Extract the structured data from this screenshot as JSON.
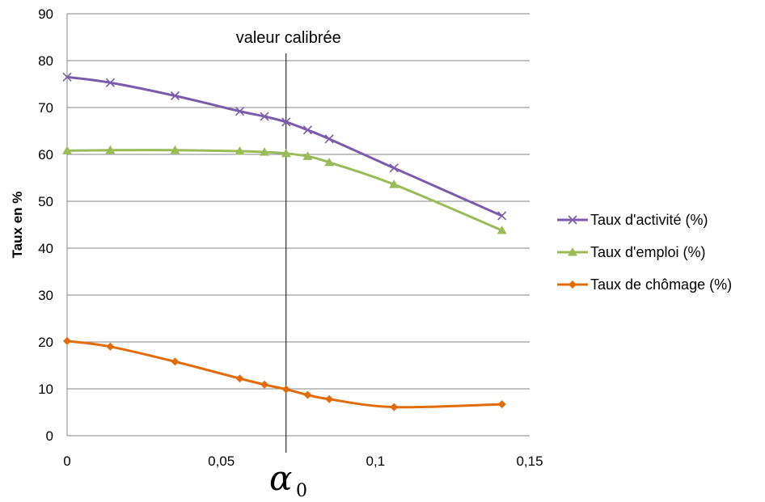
{
  "chart_data": {
    "type": "line",
    "title": "",
    "ylabel": "Taux en %",
    "xlabel": "α",
    "xlabel_subscript": "0",
    "xlim": [
      0,
      0.15
    ],
    "ylim": [
      0,
      90
    ],
    "x_ticks": [
      {
        "value": 0,
        "label": "0"
      },
      {
        "value": 0.05,
        "label": "0,05"
      },
      {
        "value": 0.1,
        "label": "0,1"
      },
      {
        "value": 0.15,
        "label": "0,15"
      }
    ],
    "y_ticks": [
      {
        "value": 0,
        "label": "0"
      },
      {
        "value": 10,
        "label": "10"
      },
      {
        "value": 20,
        "label": "20"
      },
      {
        "value": 30,
        "label": "30"
      },
      {
        "value": 40,
        "label": "40"
      },
      {
        "value": 50,
        "label": "50"
      },
      {
        "value": 60,
        "label": "60"
      },
      {
        "value": 70,
        "label": "70"
      },
      {
        "value": 80,
        "label": "80"
      },
      {
        "value": 90,
        "label": "90"
      }
    ],
    "grid": "horizontal",
    "legend_position": "right",
    "annotations": [
      {
        "type": "vertical-line",
        "x": 0.071,
        "label": "valeur calibrée"
      }
    ],
    "series": [
      {
        "name": "Taux d'activité (%)",
        "color": "#7b5bab",
        "marker": "x",
        "x": [
          0,
          0.014,
          0.035,
          0.056,
          0.064,
          0.071,
          0.078,
          0.085,
          0.106,
          0.141
        ],
        "y": [
          76.5,
          75.3,
          72.5,
          69.2,
          68.1,
          66.9,
          65.2,
          63.3,
          57.1,
          46.9
        ]
      },
      {
        "name": "Taux d'emploi (%)",
        "color": "#9bbb59",
        "marker": "triangle",
        "x": [
          0,
          0.014,
          0.035,
          0.056,
          0.064,
          0.071,
          0.078,
          0.085,
          0.106,
          0.141
        ],
        "y": [
          60.8,
          60.9,
          60.9,
          60.7,
          60.5,
          60.2,
          59.6,
          58.3,
          53.6,
          43.8
        ]
      },
      {
        "name": "Taux de chômage (%)",
        "color": "#e36c0a",
        "marker": "diamond",
        "x": [
          0,
          0.014,
          0.035,
          0.056,
          0.064,
          0.071,
          0.078,
          0.085,
          0.106,
          0.141
        ],
        "y": [
          20.2,
          19.0,
          15.8,
          12.2,
          10.9,
          9.9,
          8.7,
          7.8,
          6.1,
          6.7
        ]
      }
    ]
  }
}
